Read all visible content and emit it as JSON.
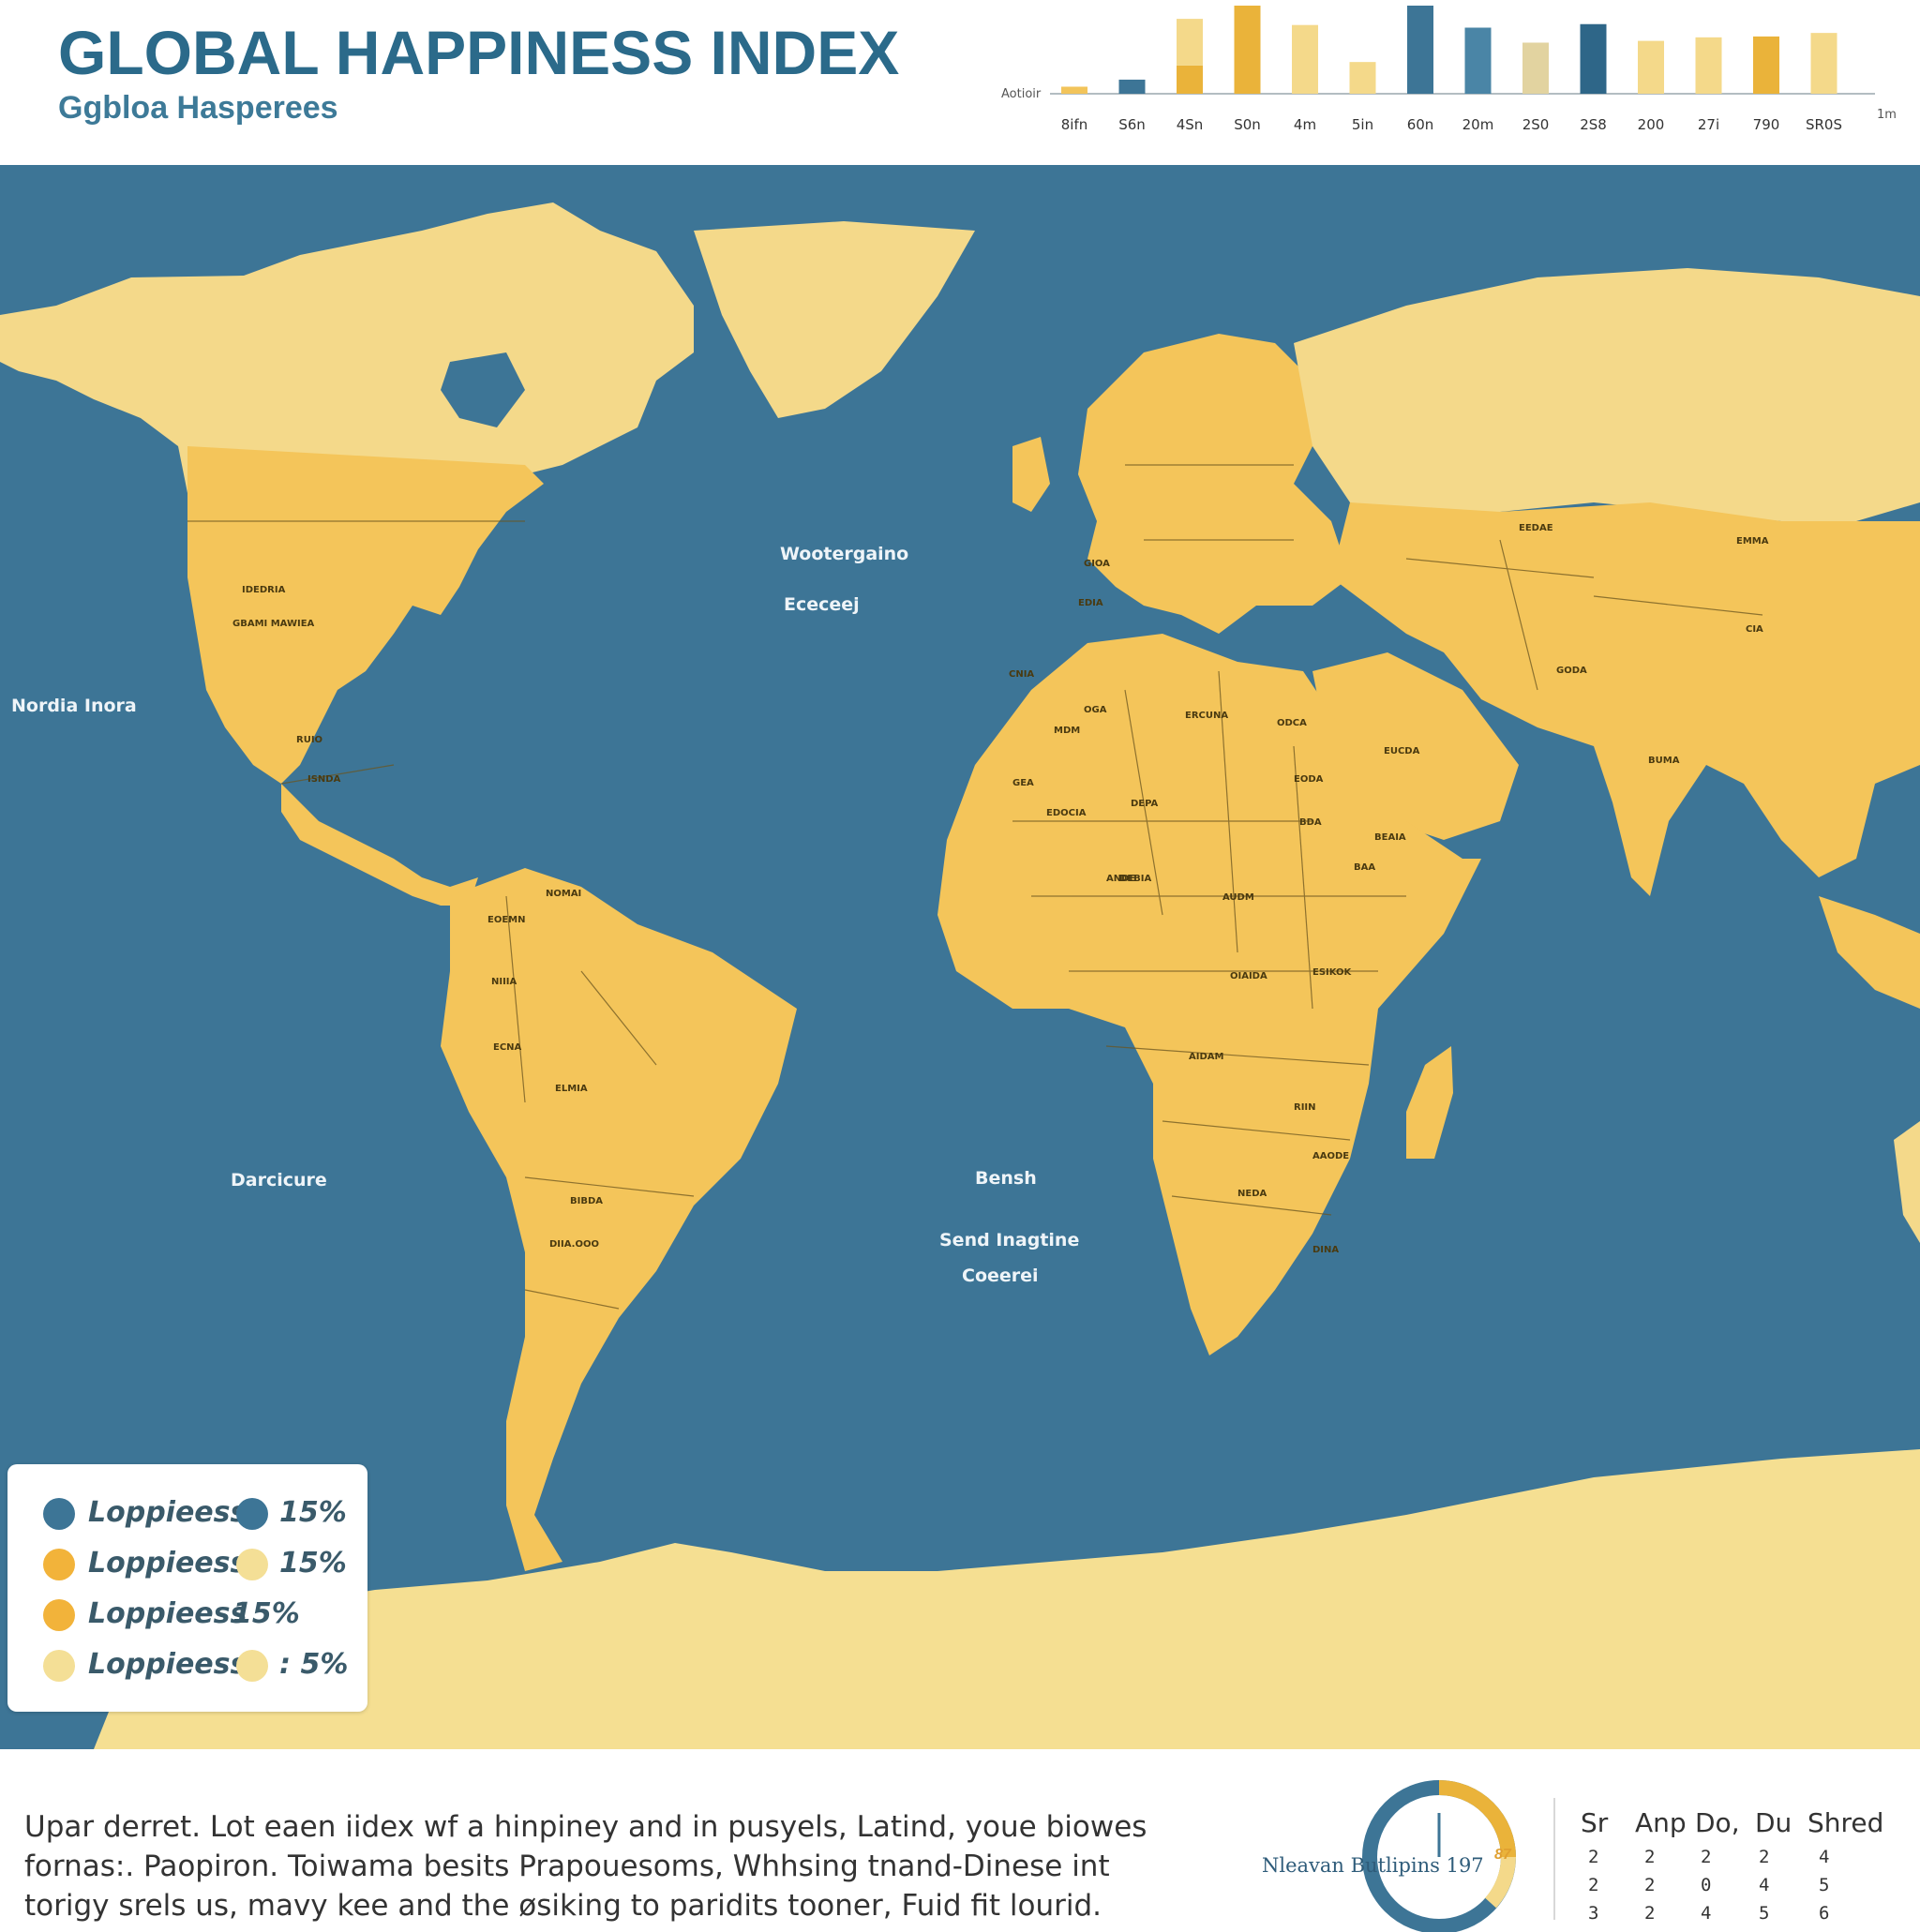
{
  "header": {
    "title": "GLOBAL HAPPINESS INDEX",
    "subtitle": "Ggbloa Hasperees"
  },
  "chart_data": {
    "type": "bar",
    "ylabel": "Aotioir",
    "corner_label": "1m",
    "categories": [
      "8ifn",
      "S6n",
      "4Sn",
      "S0n",
      "4m",
      "5in",
      "60n",
      "20m",
      "2S0",
      "2S8",
      "200",
      "27i",
      "790",
      "SR0S"
    ],
    "series": [
      {
        "name": "",
        "values": [
          0.8,
          1.6,
          8.5,
          10.0,
          7.8,
          3.6,
          10.0,
          7.5,
          5.8,
          7.9,
          6.0,
          6.4,
          6.5,
          6.9
        ]
      },
      {
        "name": "",
        "values": [
          0,
          0,
          3.2,
          0,
          0,
          0,
          0,
          0,
          0,
          0,
          0,
          0,
          0,
          0
        ]
      }
    ],
    "colors": [
      "#f2c45a",
      "#3d7596",
      "#f4d98a",
      "#eab33a",
      "#f4d98a",
      "#f4d98a",
      "#3d7596",
      "#4a85a6",
      "#e2d3a0",
      "#2e6688",
      "#f4d98a",
      "#f4d98a",
      "#eab33a",
      "#f4d98a"
    ],
    "ylim": [
      0,
      10
    ]
  },
  "map": {
    "ocean_color": "#3d7596",
    "land_color": "#f4c55a",
    "polar_color": "#f5df92",
    "ocean_labels": [
      {
        "text": "Wootergaino"
      },
      {
        "text": "Ececeej"
      },
      {
        "text": "Nordia Inora"
      },
      {
        "text": "Darcicure"
      },
      {
        "text": "Bensh"
      },
      {
        "text": "Send Inagtine"
      },
      {
        "text": "Coeerei"
      }
    ],
    "country_labels": [
      "IDEDRIA",
      "GBAMI MAWIEA",
      "RUIO",
      "ISNDA",
      "NOMAI",
      "EOEMN",
      "NIIIA",
      "ELMIA",
      "ECNA",
      "BIBDA",
      "GIOA",
      "EDIA",
      "EUCDA",
      "EEDAE",
      "GODA",
      "EMMA",
      "BUMA",
      "CIA",
      "MDM",
      "CNIA",
      "OGA",
      "ODCA",
      "ERCUNA",
      "BEAIA",
      "DEPA",
      "GEA",
      "EDOCIA",
      "BDA",
      "DEBIA",
      "ANDE",
      "ESIKOK",
      "AUDM",
      "OIAIDA",
      "EODA",
      "BAA",
      "AAODE",
      "AIDAM",
      "RIIN",
      "NEDA",
      "DINA",
      "DIIA.OOO"
    ]
  },
  "legend": {
    "items": [
      {
        "label": "Loppieess",
        "value": "15%",
        "color1": "#3d7596",
        "color2": "#3d7596"
      },
      {
        "label": "Loppieess",
        "value": "15%",
        "color1": "#f2b33a",
        "color2": "#f4df96"
      },
      {
        "label": "Loppieess",
        "value": "15%",
        "color1": "#f2b33a",
        "color2": ""
      },
      {
        "label": "Loppieess",
        "value": ": 5%",
        "color1": "#f4df96",
        "color2": "#f4df96"
      }
    ]
  },
  "footer": {
    "lines": [
      "Upar derret. Lot eaen iidex wf  a hinpiney and in pusyels, Latind, youe biowes",
      "fornas:. Paopiron. Toiwama besits Prapouesoms, Whhsing tnand-Dinese int",
      "torigy srels us, mavy kee and the øsiking to paridits tooner, Fuid fit lourid."
    ],
    "gauge_label": "Nleavan Butlipins 197",
    "gauge_num": "87",
    "table": {
      "headers": [
        "Sr",
        "Anp",
        "Do,",
        "Du",
        "Shred"
      ],
      "rows": [
        [
          "2",
          "2",
          "2",
          "2",
          "4"
        ],
        [
          "2",
          "2",
          "0",
          "4",
          "5"
        ],
        [
          "3",
          "2",
          "4",
          "5",
          "6"
        ]
      ]
    }
  }
}
